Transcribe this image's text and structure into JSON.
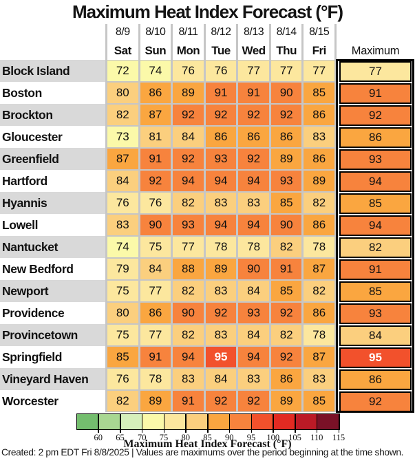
{
  "title": "Maximum Heat Index Forecast (°F)",
  "header": {
    "max_label": "Maximum"
  },
  "columns": [
    {
      "date": "8/9",
      "day": "Sat"
    },
    {
      "date": "8/10",
      "day": "Sun"
    },
    {
      "date": "8/11",
      "day": "Mon"
    },
    {
      "date": "8/12",
      "day": "Tue"
    },
    {
      "date": "8/13",
      "day": "Wed"
    },
    {
      "date": "8/14",
      "day": "Thu"
    },
    {
      "date": "8/15",
      "day": "Fri"
    }
  ],
  "chart_data": {
    "type": "heatmap",
    "title": "Maximum Heat Index Forecast (°F)",
    "x": [
      "8/9 Sat",
      "8/10 Sun",
      "8/11 Mon",
      "8/12 Tue",
      "8/13 Wed",
      "8/14 Thu",
      "8/15 Fri"
    ],
    "cities": [
      "Block Island",
      "Boston",
      "Brockton",
      "Gloucester",
      "Greenfield",
      "Hartford",
      "Hyannis",
      "Lowell",
      "Nantucket",
      "New Bedford",
      "Newport",
      "Providence",
      "Provincetown",
      "Springfield",
      "Vineyard Haven",
      "Worcester"
    ],
    "values": [
      [
        72,
        74,
        76,
        76,
        77,
        77,
        77
      ],
      [
        80,
        86,
        89,
        91,
        91,
        90,
        85
      ],
      [
        82,
        87,
        92,
        92,
        92,
        92,
        86
      ],
      [
        73,
        81,
        84,
        86,
        86,
        86,
        83
      ],
      [
        87,
        91,
        92,
        93,
        92,
        89,
        86
      ],
      [
        84,
        92,
        94,
        94,
        94,
        93,
        89
      ],
      [
        76,
        76,
        82,
        83,
        83,
        85,
        82
      ],
      [
        83,
        90,
        93,
        94,
        94,
        90,
        86
      ],
      [
        74,
        75,
        77,
        78,
        78,
        82,
        78
      ],
      [
        79,
        84,
        88,
        89,
        90,
        91,
        87
      ],
      [
        75,
        77,
        82,
        83,
        84,
        85,
        82
      ],
      [
        80,
        86,
        90,
        92,
        93,
        92,
        86
      ],
      [
        75,
        77,
        82,
        83,
        84,
        82,
        78
      ],
      [
        85,
        91,
        94,
        95,
        94,
        92,
        87
      ],
      [
        76,
        78,
        83,
        84,
        83,
        86,
        83
      ],
      [
        82,
        89,
        91,
        92,
        92,
        89,
        85
      ]
    ],
    "maximum": [
      77,
      91,
      92,
      86,
      93,
      94,
      85,
      94,
      82,
      91,
      85,
      93,
      84,
      95,
      86,
      92
    ],
    "colorbar": {
      "label": "Maximum Heat Index Forecast (°F)",
      "domain_min": 55,
      "bucket_size": 5,
      "ticks": [
        60,
        65,
        70,
        75,
        80,
        85,
        90,
        95,
        100,
        105,
        110,
        115
      ],
      "colors": [
        "#74BE6E",
        "#A9D792",
        "#D6F0BB",
        "#FBF9A9",
        "#FCE79E",
        "#FBCF7E",
        "#FAA640",
        "#F7833D",
        "#F2512C",
        "#E22A22",
        "#BC1A26",
        "#7A1127"
      ]
    },
    "hot_text_threshold": 95,
    "hot_text_color": "#ffffff",
    "legend_position": "bottom"
  },
  "style_colors": {
    "row_shade": "#D9D9D9",
    "grid_line": "#C6C6C6",
    "cell_text": "#111111"
  },
  "footer": "Created: 2 pm EDT Fri 8/8/2025  |  Values are maximums over the period beginning at the time shown."
}
